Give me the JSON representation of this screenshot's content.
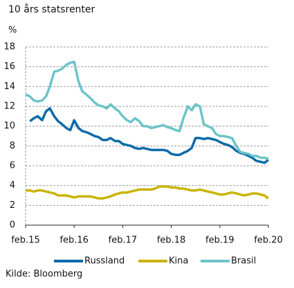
{
  "chart_data": {
    "type": "line",
    "title": "10 års statsrenter",
    "y_label": "%",
    "source": "Kilde: Bloomberg",
    "x": [
      2015.08,
      2015.17,
      2015.25,
      2015.33,
      2015.42,
      2015.5,
      2015.58,
      2015.67,
      2015.75,
      2015.83,
      2015.92,
      2016.0,
      2016.08,
      2016.17,
      2016.25,
      2016.33,
      2016.42,
      2016.5,
      2016.58,
      2016.67,
      2016.75,
      2016.83,
      2016.92,
      2017.0,
      2017.08,
      2017.17,
      2017.25,
      2017.33,
      2017.42,
      2017.5,
      2017.58,
      2017.67,
      2017.75,
      2017.83,
      2017.92,
      2018.0,
      2018.08,
      2018.17,
      2018.25,
      2018.33,
      2018.42,
      2018.5,
      2018.58,
      2018.67,
      2018.75,
      2018.83,
      2018.92,
      2019.0,
      2019.08,
      2019.17,
      2019.25,
      2019.33,
      2019.42,
      2019.5,
      2019.58,
      2019.67,
      2019.75,
      2019.83,
      2019.92,
      2020.0,
      2020.08
    ],
    "series": [
      {
        "name": "Russland",
        "color": "#0b6aa9",
        "values": [
          null,
          10.5,
          10.8,
          11.0,
          10.6,
          11.5,
          11.8,
          11.0,
          10.5,
          10.2,
          9.8,
          9.6,
          10.6,
          9.8,
          9.5,
          9.4,
          9.2,
          9.0,
          8.9,
          8.6,
          8.6,
          8.8,
          8.5,
          8.5,
          8.2,
          8.1,
          8.0,
          7.8,
          7.7,
          7.8,
          7.7,
          7.6,
          7.6,
          7.6,
          7.6,
          7.5,
          7.2,
          7.1,
          7.1,
          7.3,
          7.5,
          7.8,
          8.8,
          8.8,
          8.7,
          8.8,
          8.7,
          8.6,
          8.4,
          8.2,
          8.1,
          7.9,
          7.5,
          7.3,
          7.2,
          7.0,
          6.8,
          6.5,
          6.4,
          6.3,
          6.6
        ]
      },
      {
        "name": "Kina",
        "color": "#c9b300",
        "values": [
          3.5,
          3.5,
          3.4,
          3.5,
          3.5,
          3.4,
          3.3,
          3.2,
          3.0,
          3.0,
          3.0,
          2.9,
          2.8,
          2.9,
          2.9,
          2.9,
          2.9,
          2.8,
          2.7,
          2.7,
          2.8,
          2.9,
          3.1,
          3.2,
          3.3,
          3.3,
          3.4,
          3.5,
          3.6,
          3.6,
          3.6,
          3.6,
          3.7,
          3.9,
          3.9,
          3.9,
          3.8,
          3.8,
          3.7,
          3.7,
          3.6,
          3.5,
          3.5,
          3.6,
          3.5,
          3.4,
          3.3,
          3.2,
          3.1,
          3.1,
          3.2,
          3.3,
          3.2,
          3.1,
          3.0,
          3.1,
          3.2,
          3.2,
          3.1,
          3.0,
          2.7
        ]
      },
      {
        "name": "Brasil",
        "color": "#6cc4c8",
        "values": [
          13.2,
          13.0,
          12.6,
          12.5,
          12.6,
          13.0,
          14.0,
          15.5,
          15.6,
          15.8,
          16.2,
          16.4,
          16.5,
          14.5,
          13.5,
          13.2,
          12.8,
          12.4,
          12.1,
          12.0,
          11.8,
          12.2,
          11.8,
          11.5,
          11.0,
          10.6,
          10.4,
          10.8,
          10.5,
          10.0,
          10.0,
          9.8,
          9.9,
          10.0,
          10.1,
          9.9,
          9.8,
          9.6,
          9.5,
          10.8,
          12.0,
          11.6,
          12.2,
          12.0,
          10.2,
          10.0,
          9.8,
          9.2,
          9.0,
          9.0,
          8.9,
          8.8,
          8.0,
          7.4,
          7.3,
          7.2,
          7.0,
          7.0,
          6.8,
          6.8,
          6.7
        ]
      }
    ],
    "xlim": [
      2015.08,
      2020.08
    ],
    "xticks": [
      {
        "value": 2015.08,
        "label": "feb.15"
      },
      {
        "value": 2016.08,
        "label": "feb.16"
      },
      {
        "value": 2017.08,
        "label": "feb.17"
      },
      {
        "value": 2018.08,
        "label": "feb.18"
      },
      {
        "value": 2019.08,
        "label": "feb.19"
      },
      {
        "value": 2020.08,
        "label": "feb.20"
      }
    ],
    "ylim": [
      0,
      18
    ],
    "yticks": [
      0,
      2,
      4,
      6,
      8,
      10,
      12,
      14,
      16,
      18
    ],
    "grid": true
  }
}
